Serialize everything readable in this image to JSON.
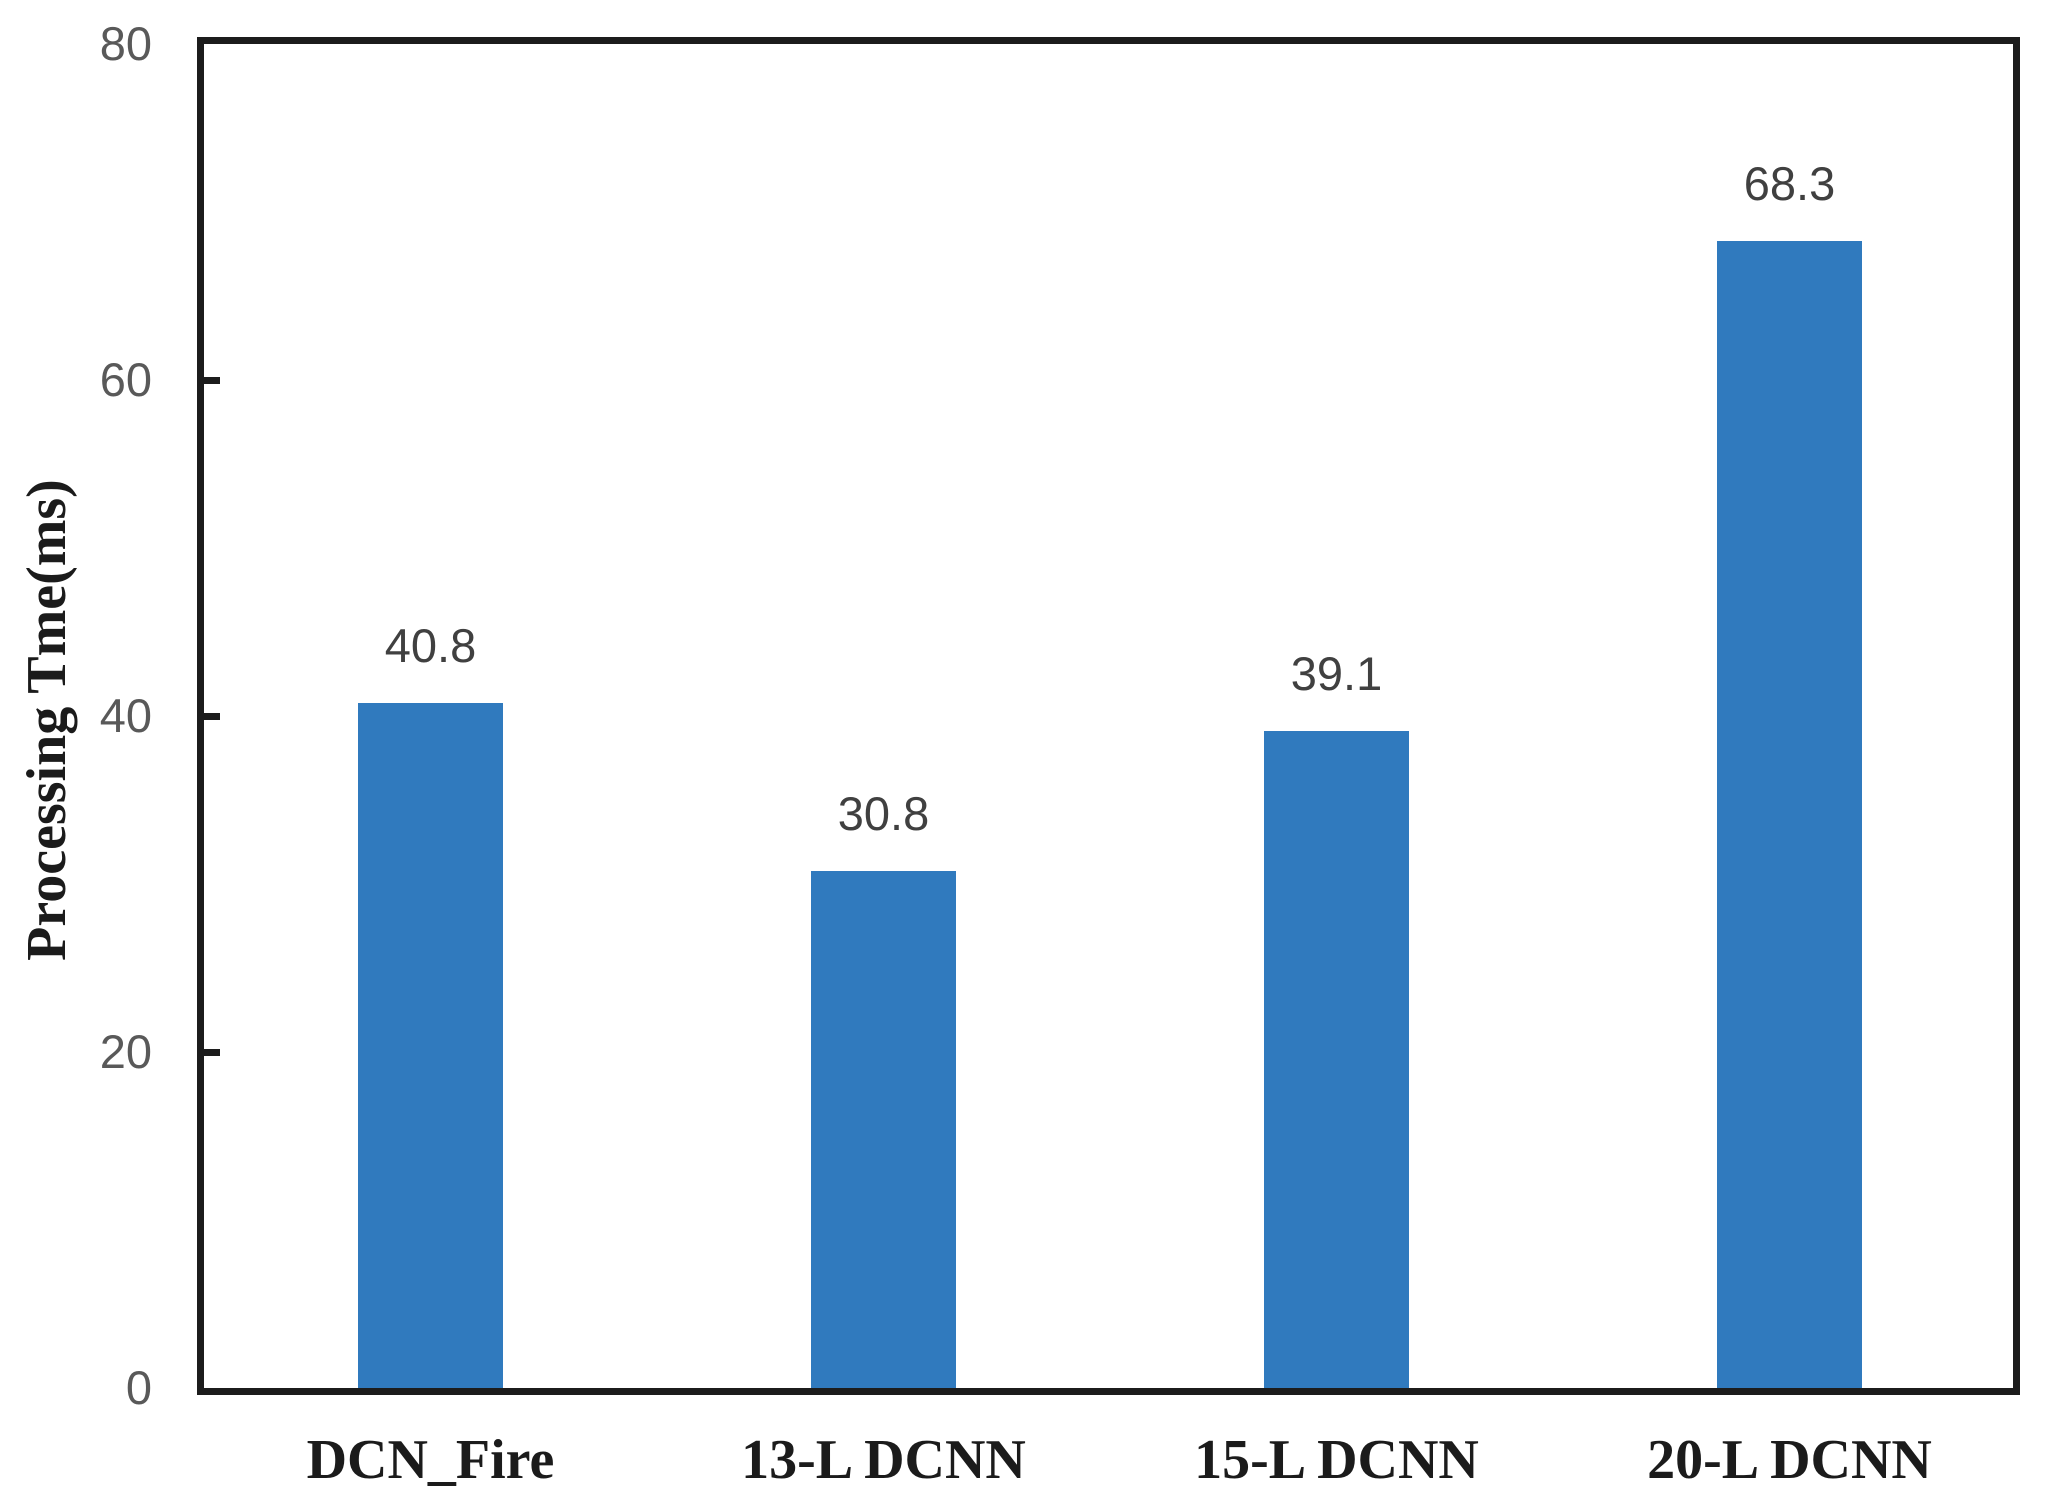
{
  "chart_data": {
    "type": "bar",
    "title": "",
    "xlabel": "",
    "ylabel": "Processing Tme(ms)",
    "categories": [
      "DCN_Fire",
      "13-L DCNN",
      "15-L DCNN",
      "20-L DCNN"
    ],
    "values": [
      40.8,
      30.8,
      39.1,
      68.3
    ],
    "data_labels": [
      "40.8",
      "30.8",
      "39.1",
      "68.3"
    ],
    "ylim": [
      0,
      80
    ],
    "yticks": [
      0,
      20,
      40,
      60,
      80
    ],
    "ytick_labels": [
      "0",
      "20",
      "40",
      "60",
      "80"
    ],
    "grid": false,
    "legend": false,
    "colors": {
      "bar_fill": "#307abe",
      "frame": "#1c1c1c",
      "ytick_text": "#595959",
      "data_label_text": "#404040",
      "axis_label_text": "#1b1b1b"
    }
  }
}
